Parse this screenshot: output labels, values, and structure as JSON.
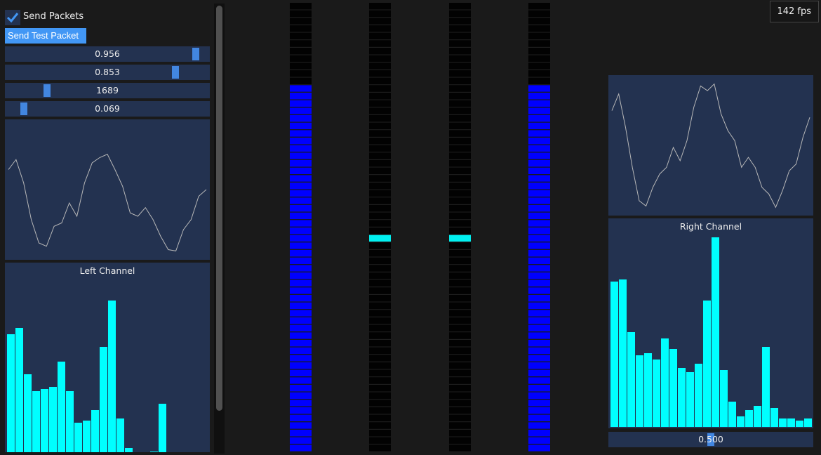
{
  "controls": {
    "send_packets_label": "Send Packets",
    "send_packets_checked": true,
    "send_test_packet_label": "Send Test Packet"
  },
  "sliders": [
    {
      "value": "0.956",
      "fraction": 0.956
    },
    {
      "value": "0.853",
      "fraction": 0.853
    },
    {
      "value": "1689",
      "fraction": 0.19
    },
    {
      "value": "0.069",
      "fraction": 0.069
    }
  ],
  "fps": "142 fps",
  "left_channel": {
    "title": "Left Channel",
    "waveform": [
      0.3,
      0.45,
      0.1,
      -0.45,
      -0.8,
      -0.85,
      -0.55,
      -0.5,
      -0.2,
      -0.4,
      0.1,
      0.4,
      0.48,
      0.53,
      0.3,
      0.05,
      -0.35,
      -0.4,
      -0.27,
      -0.45,
      -0.7,
      -0.9,
      -0.92,
      -0.6,
      -0.45,
      -0.1,
      0
    ],
    "spectrum": [
      0.56,
      0.59,
      0.37,
      0.29,
      0.3,
      0.31,
      0.43,
      0.29,
      0.14,
      0.15,
      0.2,
      0.5,
      0.72,
      0.16,
      0.02,
      0,
      0,
      0.003,
      0.23,
      0,
      0,
      0,
      0,
      0
    ]
  },
  "right_channel": {
    "title": "Right Channel",
    "waveform": [
      0.52,
      0.77,
      0.27,
      -0.33,
      -0.83,
      -0.91,
      -0.63,
      -0.43,
      -0.33,
      -0.03,
      -0.23,
      0.07,
      0.57,
      0.89,
      0.82,
      0.92,
      0.47,
      0.22,
      0.07,
      -0.33,
      -0.18,
      -0.33,
      -0.63,
      -0.73,
      -0.93,
      -0.68,
      -0.38,
      -0.28,
      0.12,
      0.42
    ],
    "spectrum": [
      0.69,
      0.7,
      0.45,
      0.34,
      0.35,
      0.32,
      0.42,
      0.37,
      0.28,
      0.26,
      0.3,
      0.6,
      0.9,
      0.27,
      0.12,
      0.05,
      0.08,
      0.1,
      0.38,
      0.09,
      0.04,
      0.04,
      0.03,
      0.04
    ]
  },
  "right_slider": {
    "value": "0.500",
    "fraction": 0.5
  },
  "meters": [
    {
      "level": 0.817,
      "mode": "fill",
      "color": "#0000ff"
    },
    {
      "level": 0.49,
      "mode": "peak",
      "color": "#00f0f0"
    },
    {
      "level": 0.49,
      "mode": "peak",
      "color": "#00f0f0"
    },
    {
      "level": 0.817,
      "mode": "fill",
      "color": "#0000ff"
    }
  ],
  "colors": {
    "accent": "#4297f5",
    "panel": "#233250",
    "bars": "#00ffff"
  }
}
